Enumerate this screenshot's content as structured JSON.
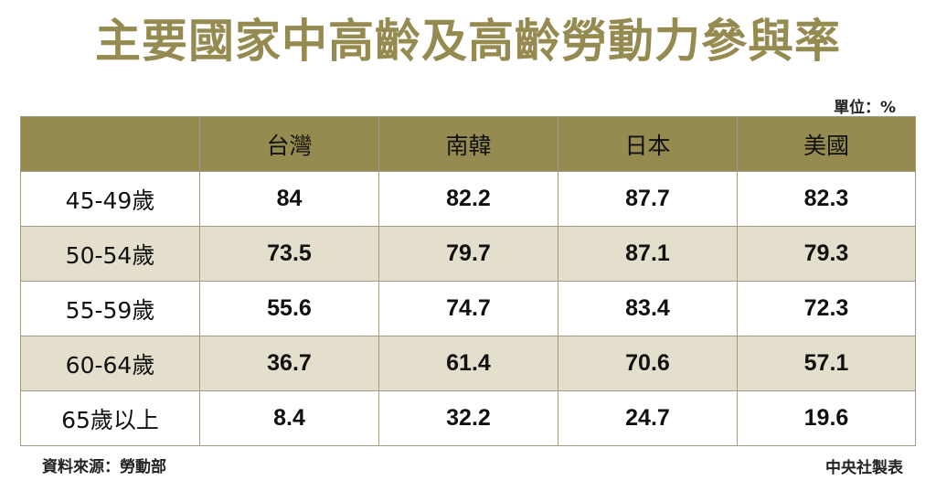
{
  "title": "主要國家中高齡及高齡勞動力參與率",
  "unit": "單位：%",
  "source": "資料來源：勞動部",
  "credit": "中央社製表",
  "table": {
    "columns": [
      "台灣",
      "南韓",
      "日本",
      "美國"
    ],
    "rows": [
      {
        "label": "45-49歲",
        "values": [
          "84",
          "82.2",
          "87.7",
          "82.3"
        ]
      },
      {
        "label": "50-54歲",
        "values": [
          "73.5",
          "79.7",
          "87.1",
          "79.3"
        ]
      },
      {
        "label": "55-59歲",
        "values": [
          "55.6",
          "74.7",
          "83.4",
          "72.3"
        ]
      },
      {
        "label": "60-64歲",
        "values": [
          "36.7",
          "61.4",
          "70.6",
          "57.1"
        ]
      },
      {
        "label": "65歲以上",
        "values": [
          "8.4",
          "32.2",
          "24.7",
          "19.6"
        ]
      }
    ]
  },
  "colors": {
    "title": "#958a4f",
    "header_bg": "#958a4f",
    "alt_row_bg": "#e3dfcc"
  }
}
